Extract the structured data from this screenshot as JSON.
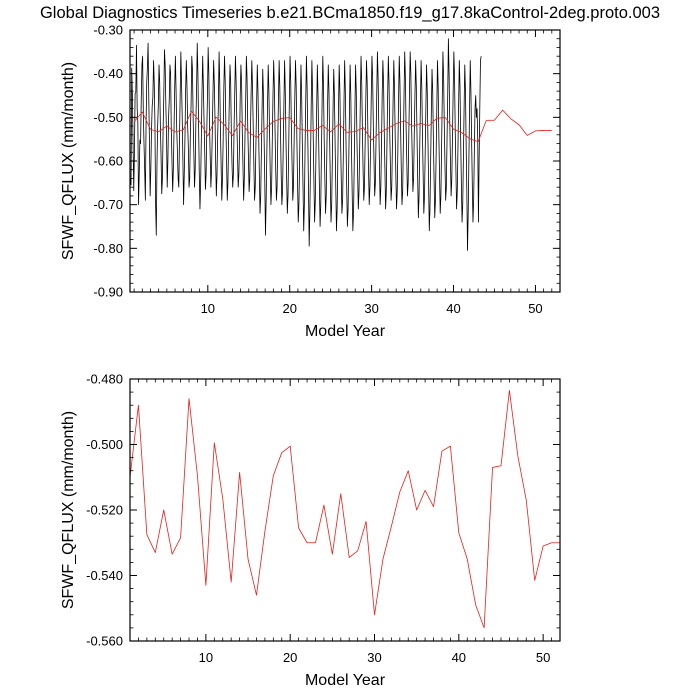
{
  "page_title": "Global Diagnostics Timeseries b.e21.BCma1850.f19_g17.8kaControl-2deg.proto.003",
  "chart_data": [
    {
      "type": "line",
      "title": "Global Diagnostics Timeseries b.e21.BCma1850.f19_g17.8kaControl-2deg.proto.003",
      "xlabel": "Model Year",
      "ylabel": "SFWF_QFLUX (mm/month)",
      "xlim": [
        0.5,
        53
      ],
      "ylim": [
        -0.9,
        -0.3
      ],
      "xticks": [
        10,
        20,
        30,
        40,
        50
      ],
      "xtick_labels": [
        "10",
        "20",
        "30",
        "40",
        "50"
      ],
      "yticks": [
        -0.9,
        -0.8,
        -0.7,
        -0.6,
        -0.5,
        -0.4,
        -0.3
      ],
      "ytick_labels": [
        "-0.90",
        "-0.80",
        "-0.70",
        "-0.60",
        "-0.50",
        "-0.40",
        "-0.30"
      ],
      "grid": false,
      "series": [
        {
          "color": "#000000",
          "x_start": 0.542,
          "x_step": 0.08333,
          "values": [
            -0.64,
            -0.655,
            -0.387,
            -0.45,
            -0.56,
            -0.668,
            -0.575,
            -0.445,
            -0.443,
            -0.335,
            -0.48,
            -0.512,
            -0.7,
            -0.63,
            -0.552,
            -0.56,
            -0.46,
            -0.38,
            -0.36,
            -0.49,
            -0.56,
            -0.62,
            -0.69,
            -0.52,
            -0.42,
            -0.385,
            -0.33,
            -0.455,
            -0.56,
            -0.68,
            -0.62,
            -0.53,
            -0.475,
            -0.455,
            -0.37,
            -0.42,
            -0.51,
            -0.7,
            -0.77,
            -0.61,
            -0.52,
            -0.47,
            -0.38,
            -0.42,
            -0.52,
            -0.59,
            -0.675,
            -0.64,
            -0.53,
            -0.45,
            -0.345,
            -0.38,
            -0.47,
            -0.54,
            -0.66,
            -0.6,
            -0.5,
            -0.46,
            -0.38,
            -0.4,
            -0.53,
            -0.6,
            -0.67,
            -0.62,
            -0.53,
            -0.43,
            -0.36,
            -0.44,
            -0.53,
            -0.58,
            -0.64,
            -0.66,
            -0.55,
            -0.45,
            -0.35,
            -0.42,
            -0.5,
            -0.6,
            -0.7,
            -0.63,
            -0.55,
            -0.44,
            -0.37,
            -0.43,
            -0.52,
            -0.57,
            -0.66,
            -0.64,
            -0.53,
            -0.47,
            -0.36,
            -0.39,
            -0.5,
            -0.58,
            -0.66,
            -0.62,
            -0.51,
            -0.44,
            -0.33,
            -0.4,
            -0.52,
            -0.63,
            -0.71,
            -0.65,
            -0.55,
            -0.44,
            -0.36,
            -0.43,
            -0.51,
            -0.58,
            -0.665,
            -0.63,
            -0.53,
            -0.45,
            -0.34,
            -0.4,
            -0.52,
            -0.59,
            -0.66,
            -0.62,
            -0.54,
            -0.45,
            -0.37,
            -0.42,
            -0.5,
            -0.6,
            -0.68,
            -0.63,
            -0.54,
            -0.47,
            -0.35,
            -0.42,
            -0.53,
            -0.61,
            -0.69,
            -0.64,
            -0.55,
            -0.43,
            -0.36,
            -0.42,
            -0.52,
            -0.6,
            -0.69,
            -0.65,
            -0.55,
            -0.46,
            -0.38,
            -0.42,
            -0.54,
            -0.61,
            -0.66,
            -0.63,
            -0.52,
            -0.44,
            -0.36,
            -0.42,
            -0.51,
            -0.58,
            -0.66,
            -0.63,
            -0.56,
            -0.45,
            -0.38,
            -0.42,
            -0.53,
            -0.61,
            -0.69,
            -0.64,
            -0.54,
            -0.46,
            -0.36,
            -0.41,
            -0.52,
            -0.59,
            -0.67,
            -0.64,
            -0.53,
            -0.44,
            -0.37,
            -0.43,
            -0.52,
            -0.61,
            -0.69,
            -0.66,
            -0.56,
            -0.47,
            -0.38,
            -0.44,
            -0.54,
            -0.63,
            -0.72,
            -0.68,
            -0.58,
            -0.48,
            -0.39,
            -0.45,
            -0.55,
            -0.65,
            -0.77,
            -0.69,
            -0.58,
            -0.47,
            -0.38,
            -0.44,
            -0.54,
            -0.63,
            -0.7,
            -0.66,
            -0.55,
            -0.45,
            -0.37,
            -0.43,
            -0.53,
            -0.62,
            -0.69,
            -0.66,
            -0.55,
            -0.46,
            -0.37,
            -0.43,
            -0.53,
            -0.63,
            -0.7,
            -0.67,
            -0.57,
            -0.47,
            -0.37,
            -0.44,
            -0.55,
            -0.64,
            -0.72,
            -0.68,
            -0.57,
            -0.46,
            -0.36,
            -0.42,
            -0.53,
            -0.61,
            -0.69,
            -0.66,
            -0.55,
            -0.45,
            -0.37,
            -0.43,
            -0.55,
            -0.65,
            -0.74,
            -0.7,
            -0.6,
            -0.48,
            -0.38,
            -0.45,
            -0.56,
            -0.66,
            -0.76,
            -0.7,
            -0.57,
            -0.46,
            -0.36,
            -0.43,
            -0.55,
            -0.66,
            -0.795,
            -0.72,
            -0.6,
            -0.47,
            -0.37,
            -0.44,
            -0.55,
            -0.65,
            -0.74,
            -0.69,
            -0.58,
            -0.48,
            -0.38,
            -0.45,
            -0.56,
            -0.66,
            -0.75,
            -0.7,
            -0.58,
            -0.46,
            -0.36,
            -0.43,
            -0.55,
            -0.64,
            -0.72,
            -0.68,
            -0.57,
            -0.47,
            -0.38,
            -0.44,
            -0.55,
            -0.65,
            -0.74,
            -0.7,
            -0.59,
            -0.48,
            -0.39,
            -0.45,
            -0.56,
            -0.66,
            -0.76,
            -0.71,
            -0.6,
            -0.48,
            -0.38,
            -0.44,
            -0.55,
            -0.64,
            -0.72,
            -0.69,
            -0.59,
            -0.47,
            -0.37,
            -0.44,
            -0.56,
            -0.66,
            -0.75,
            -0.71,
            -0.6,
            -0.49,
            -0.38,
            -0.45,
            -0.57,
            -0.67,
            -0.76,
            -0.72,
            -0.61,
            -0.49,
            -0.38,
            -0.44,
            -0.55,
            -0.63,
            -0.71,
            -0.67,
            -0.57,
            -0.46,
            -0.36,
            -0.42,
            -0.53,
            -0.62,
            -0.69,
            -0.66,
            -0.56,
            -0.46,
            -0.37,
            -0.42,
            -0.53,
            -0.62,
            -0.7,
            -0.66,
            -0.56,
            -0.45,
            -0.36,
            -0.41,
            -0.52,
            -0.6,
            -0.68,
            -0.65,
            -0.55,
            -0.45,
            -0.35,
            -0.41,
            -0.52,
            -0.61,
            -0.7,
            -0.66,
            -0.56,
            -0.45,
            -0.37,
            -0.42,
            -0.53,
            -0.62,
            -0.71,
            -0.67,
            -0.56,
            -0.45,
            -0.36,
            -0.42,
            -0.53,
            -0.61,
            -0.69,
            -0.66,
            -0.56,
            -0.46,
            -0.37,
            -0.43,
            -0.54,
            -0.63,
            -0.71,
            -0.67,
            -0.57,
            -0.46,
            -0.36,
            -0.42,
            -0.53,
            -0.62,
            -0.7,
            -0.67,
            -0.56,
            -0.45,
            -0.35,
            -0.41,
            -0.52,
            -0.6,
            -0.68,
            -0.65,
            -0.54,
            -0.44,
            -0.35,
            -0.4,
            -0.51,
            -0.59,
            -0.67,
            -0.64,
            -0.54,
            -0.45,
            -0.37,
            -0.43,
            -0.54,
            -0.64,
            -0.73,
            -0.68,
            -0.57,
            -0.47,
            -0.37,
            -0.43,
            -0.54,
            -0.63,
            -0.72,
            -0.68,
            -0.58,
            -0.48,
            -0.38,
            -0.44,
            -0.55,
            -0.65,
            -0.76,
            -0.71,
            -0.6,
            -0.49,
            -0.39,
            -0.44,
            -0.55,
            -0.64,
            -0.73,
            -0.69,
            -0.59,
            -0.48,
            -0.37,
            -0.43,
            -0.54,
            -0.63,
            -0.72,
            -0.68,
            -0.57,
            -0.46,
            -0.35,
            -0.41,
            -0.52,
            -0.61,
            -0.69,
            -0.66,
            -0.55,
            -0.45,
            -0.32,
            -0.4,
            -0.51,
            -0.6,
            -0.68,
            -0.64,
            -0.54,
            -0.44,
            -0.35,
            -0.41,
            -0.53,
            -0.62,
            -0.71,
            -0.67,
            -0.57,
            -0.47,
            -0.37,
            -0.43,
            -0.55,
            -0.65,
            -0.74,
            -0.7,
            -0.59,
            -0.48,
            -0.38,
            -0.44,
            -0.56,
            -0.67,
            -0.805,
            -0.72,
            -0.6,
            -0.48,
            -0.37,
            -0.44,
            -0.55,
            -0.65,
            -0.74,
            -0.69,
            -0.58,
            -0.48,
            -0.45,
            -0.5,
            -0.48,
            -0.55,
            -0.74,
            -0.6,
            -0.48,
            -0.37,
            -0.36
          ]
        },
        {
          "color": "#e8201a",
          "x": [
            1,
            2,
            3,
            4,
            5,
            6,
            7,
            8,
            9,
            10,
            11,
            12,
            13,
            14,
            15,
            16,
            17,
            18,
            19,
            20,
            21,
            22,
            23,
            24,
            25,
            26,
            27,
            28,
            29,
            30,
            31,
            32,
            33,
            34,
            35,
            36,
            37,
            38,
            39,
            40,
            41,
            42,
            43,
            44,
            45,
            46,
            47,
            48,
            49,
            50,
            51,
            52
          ],
          "values": [
            -0.51,
            -0.488,
            -0.5275,
            -0.533,
            -0.52,
            -0.5335,
            -0.5285,
            -0.486,
            -0.5095,
            -0.543,
            -0.4995,
            -0.5165,
            -0.542,
            -0.5085,
            -0.535,
            -0.546,
            -0.5265,
            -0.5095,
            -0.5025,
            -0.5005,
            -0.5255,
            -0.53,
            -0.53,
            -0.5185,
            -0.5335,
            -0.515,
            -0.5345,
            -0.5325,
            -0.5235,
            -0.552,
            -0.535,
            -0.525,
            -0.5145,
            -0.508,
            -0.52,
            -0.514,
            -0.519,
            -0.502,
            -0.5005,
            -0.527,
            -0.535,
            -0.549,
            -0.556,
            -0.507,
            -0.5065,
            -0.4835,
            -0.5035,
            -0.517,
            -0.5415,
            -0.531,
            -0.53,
            -0.53
          ]
        }
      ]
    },
    {
      "type": "line",
      "title": "",
      "xlabel": "Model Year",
      "ylabel": "SFWF_QFLUX (mm/month)",
      "xlim": [
        1,
        52
      ],
      "ylim": [
        -0.56,
        -0.48
      ],
      "xticks": [
        10,
        20,
        30,
        40,
        50
      ],
      "xtick_labels": [
        "10",
        "20",
        "30",
        "40",
        "50"
      ],
      "yticks": [
        -0.56,
        -0.54,
        -0.52,
        -0.5,
        -0.48
      ],
      "ytick_labels": [
        "-0.560",
        "-0.540",
        "-0.520",
        "-0.500",
        "-0.480"
      ],
      "grid": false,
      "series": [
        {
          "color": "#e8201a",
          "x": [
            1,
            2,
            3,
            4,
            5,
            6,
            7,
            8,
            9,
            10,
            11,
            12,
            13,
            14,
            15,
            16,
            17,
            18,
            19,
            20,
            21,
            22,
            23,
            24,
            25,
            26,
            27,
            28,
            29,
            30,
            31,
            32,
            33,
            34,
            35,
            36,
            37,
            38,
            39,
            40,
            41,
            42,
            43,
            44,
            45,
            46,
            47,
            48,
            49,
            50,
            51,
            52
          ],
          "values": [
            -0.51,
            -0.488,
            -0.5275,
            -0.533,
            -0.52,
            -0.5335,
            -0.5285,
            -0.486,
            -0.5095,
            -0.543,
            -0.4995,
            -0.5165,
            -0.542,
            -0.5085,
            -0.535,
            -0.546,
            -0.5265,
            -0.5095,
            -0.5025,
            -0.5005,
            -0.5255,
            -0.53,
            -0.53,
            -0.5185,
            -0.5335,
            -0.515,
            -0.5345,
            -0.5325,
            -0.5235,
            -0.552,
            -0.535,
            -0.525,
            -0.5145,
            -0.508,
            -0.52,
            -0.514,
            -0.519,
            -0.502,
            -0.5005,
            -0.527,
            -0.535,
            -0.549,
            -0.556,
            -0.507,
            -0.5065,
            -0.4835,
            -0.5035,
            -0.517,
            -0.5415,
            -0.531,
            -0.53,
            -0.53
          ]
        }
      ]
    }
  ]
}
